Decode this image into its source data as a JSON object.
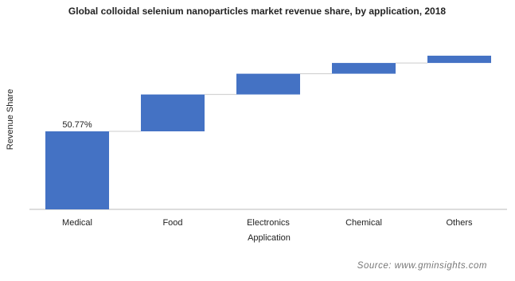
{
  "chart_data": {
    "type": "waterfall",
    "title": "Global  colloidal  selenium nanoparticles market revenue share, by application,  2018",
    "x_label": "Application",
    "y_label": "Revenue Share",
    "categories": [
      "Medical",
      "Food",
      "Electronics",
      "Chemical",
      "Others"
    ],
    "values": [
      50.77,
      24,
      13.5,
      7,
      4.73
    ],
    "value_labels": [
      "50.77%",
      null,
      null,
      null,
      null
    ],
    "color": "#4472c4",
    "ylim": [
      0,
      115
    ],
    "source": "Source: www.gminsights.com"
  }
}
